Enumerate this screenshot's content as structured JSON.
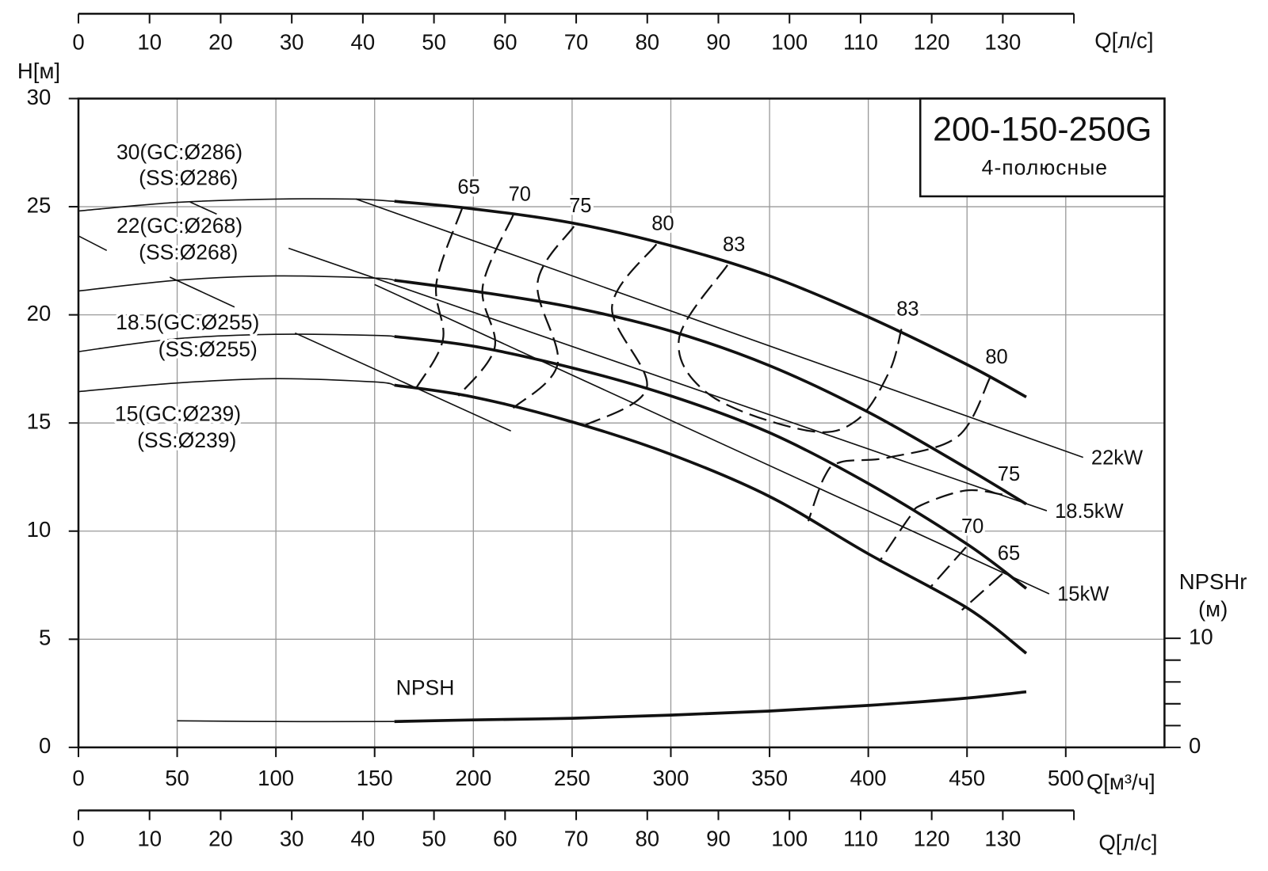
{
  "chart_data": {
    "type": "line",
    "title": "200-150-250G",
    "subtitle": "4-полюсные",
    "x_label": "Q[м³/ч]",
    "y_label": "H[м]",
    "y2_label": "NPSHr",
    "y2_unit": "(м)",
    "xlim": [
      0,
      550
    ],
    "ylim": [
      0,
      30
    ],
    "xticks": [
      0,
      50,
      100,
      150,
      200,
      250,
      300,
      350,
      400,
      450,
      500
    ],
    "yticks": [
      0,
      5,
      10,
      15,
      20,
      25,
      30
    ],
    "y2lim": [
      0,
      59.5
    ],
    "y2ticks": [
      0,
      10
    ],
    "y2minor_ticks": [
      2,
      4,
      6,
      8
    ],
    "grid": true,
    "color": "#111111",
    "grid_color": "#9a9a9a",
    "top_axis": {
      "label": "Q[л/с]",
      "xlim": [
        0,
        140
      ],
      "xticks": [
        0,
        10,
        20,
        30,
        40,
        50,
        60,
        70,
        80,
        90,
        100,
        110,
        120,
        130
      ]
    },
    "bottom_axis": {
      "label": "Q[л/с]",
      "xlim": [
        0,
        140
      ],
      "xticks": [
        0,
        10,
        20,
        30,
        40,
        50,
        60,
        70,
        80,
        90,
        100,
        110,
        120,
        130
      ]
    },
    "series": [
      {
        "name": "30(GC:Ø286)",
        "subname": "(SS:Ø286)",
        "x_thin": [
          0,
          50,
          100,
          140,
          160
        ],
        "values_thin": [
          24.8,
          25.2,
          25.35,
          25.35,
          25.25
        ],
        "x": [
          160,
          200,
          250,
          300,
          350,
          400,
          450,
          480
        ],
        "values": [
          25.25,
          24.9,
          24.25,
          23.2,
          21.8,
          19.9,
          17.7,
          16.2
        ]
      },
      {
        "name": "22(GC:Ø268)",
        "subname": "(SS:Ø268)",
        "x_thin": [
          0,
          50,
          100,
          150,
          160
        ],
        "values_thin": [
          21.1,
          21.6,
          21.8,
          21.7,
          21.6
        ],
        "x": [
          160,
          200,
          250,
          300,
          350,
          400,
          450,
          480
        ],
        "values": [
          21.6,
          21.1,
          20.35,
          19.25,
          17.65,
          15.5,
          12.9,
          11.25
        ]
      },
      {
        "name": "18.5(GC:Ø255)",
        "subname": "(SS:Ø255)",
        "x_thin": [
          0,
          50,
          100,
          150,
          160
        ],
        "values_thin": [
          18.3,
          18.9,
          19.1,
          19.05,
          19.0
        ],
        "x": [
          160,
          200,
          250,
          300,
          350,
          400,
          450,
          480
        ],
        "values": [
          19.0,
          18.55,
          17.55,
          16.25,
          14.55,
          12.2,
          9.4,
          7.35
        ]
      },
      {
        "name": "15(GC:Ø239)",
        "subname": "(SS:Ø239)",
        "x_thin": [
          0,
          50,
          100,
          150,
          160
        ],
        "values_thin": [
          16.45,
          16.85,
          17.05,
          16.9,
          16.75
        ],
        "x": [
          160,
          200,
          250,
          300,
          350,
          400,
          450,
          480
        ],
        "values": [
          16.75,
          16.2,
          15.05,
          13.55,
          11.6,
          8.95,
          6.45,
          4.35
        ]
      }
    ],
    "power_lines": [
      {
        "name": "22kW",
        "x": [
          140.4,
          508.8
        ],
        "values": [
          25.36,
          13.41
        ]
      },
      {
        "name": "18.5kW",
        "x": [
          106.4,
          490.4
        ],
        "values": [
          23.08,
          10.94
        ]
      },
      {
        "name": "15kW",
        "x": [
          150,
          491.6
        ],
        "values": [
          21.4,
          7.1
        ]
      },
      {
        "x": [
          109.7,
          219
        ],
        "values": [
          19.16,
          14.63
        ]
      }
    ],
    "efficiency": [
      {
        "name": "65",
        "x": [
          194.4,
          181.3,
          184.6,
          171.1
        ],
        "values": [
          24.95,
          21.48,
          18.86,
          16.62
        ]
      },
      {
        "name": "70",
        "x": [
          220.2,
          204.7,
          210.8,
          192.4
        ],
        "values": [
          24.62,
          21.29,
          18.49,
          16.25
        ]
      },
      {
        "name": "75",
        "x": [
          250.9,
          232.5,
          242.7,
          220.2
        ],
        "values": [
          24.09,
          21.48,
          17.74,
          15.69
        ]
      },
      {
        "name": "80",
        "x": [
          292.7,
          270.2,
          287.8,
          255
        ],
        "values": [
          23.27,
          20.36,
          16.62,
          14.83
        ]
      },
      {
        "name": "83",
        "x": [
          328.7,
          304.1,
          320.5,
          369.6,
          394.2,
          410.6,
          416.7
        ],
        "values": [
          22.3,
          18.86,
          16.25,
          14.64,
          15.13,
          17.37,
          19.31
        ]
      },
      {
        "name": "83",
        "x": [
          416.7
        ],
        "values": [
          19.31
        ]
      },
      {
        "name": "80",
        "x": [
          461.7,
          445.4,
          410.6,
          386,
          377.8,
          369.6
        ],
        "values": [
          17.11,
          14.38,
          13.41,
          13.19,
          12.51,
          10.46
        ]
      },
      {
        "name": "75",
        "x": [
          467.9,
          449.5,
          427,
          420.9,
          405.6
        ],
        "values": [
          11.69,
          11.88,
          11.21,
          10.65,
          8.59
        ]
      },
      {
        "name": "70",
        "x": [
          449.5,
          431
        ],
        "values": [
          9.26,
          7.36
        ]
      },
      {
        "name": "65",
        "x": [
          467.9,
          447.4
        ],
        "values": [
          8.03,
          6.35
        ]
      }
    ],
    "npsh": {
      "name": "NPSH",
      "axis": "y2",
      "x_thin": [
        50,
        100,
        160
      ],
      "values_thin": [
        2.44,
        2.37,
        2.37
      ],
      "x": [
        160,
        200,
        250,
        300,
        350,
        400,
        450,
        480
      ],
      "values": [
        2.37,
        2.52,
        2.67,
        2.96,
        3.33,
        3.85,
        4.52,
        5.1
      ]
    }
  }
}
